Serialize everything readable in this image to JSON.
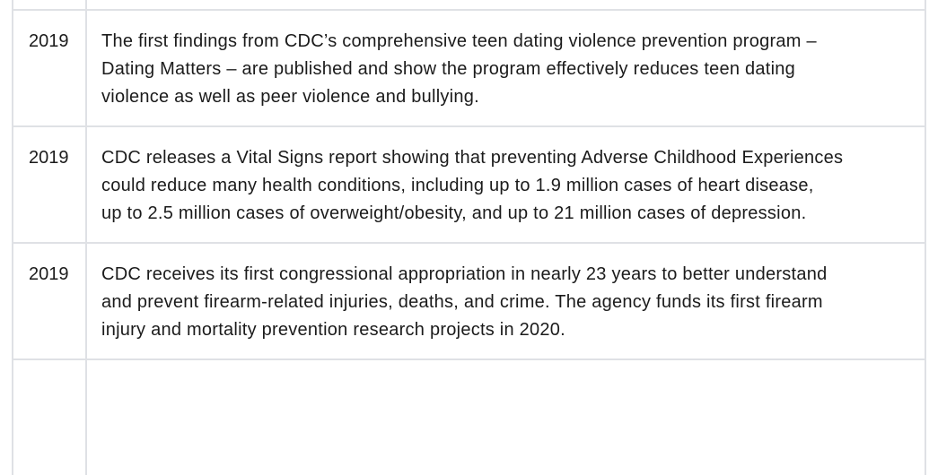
{
  "rows": [
    {
      "year": "",
      "lines": []
    },
    {
      "year": "2019",
      "lines": [
        "The first findings from CDC’s comprehensive teen dating violence prevention program –",
        "Dating Matters – are published and show the program effectively reduces teen dating",
        "violence as well as peer violence and bullying."
      ]
    },
    {
      "year": "2019",
      "lines": [
        "CDC releases a Vital Signs report showing that preventing Adverse Childhood Experiences",
        "could reduce many health conditions, including up to 1.9 million cases of heart disease,",
        "up to 2.5 million cases of overweight/obesity, and up to 21 million cases of depression."
      ]
    },
    {
      "year": "2019",
      "lines": [
        "CDC receives its first congressional appropriation in nearly 23 years to better understand",
        "and prevent firearm-related injuries, deaths, and crime. The agency funds its first firearm",
        "injury and mortality prevention research projects in 2020."
      ]
    },
    {
      "year": "",
      "lines": []
    }
  ]
}
